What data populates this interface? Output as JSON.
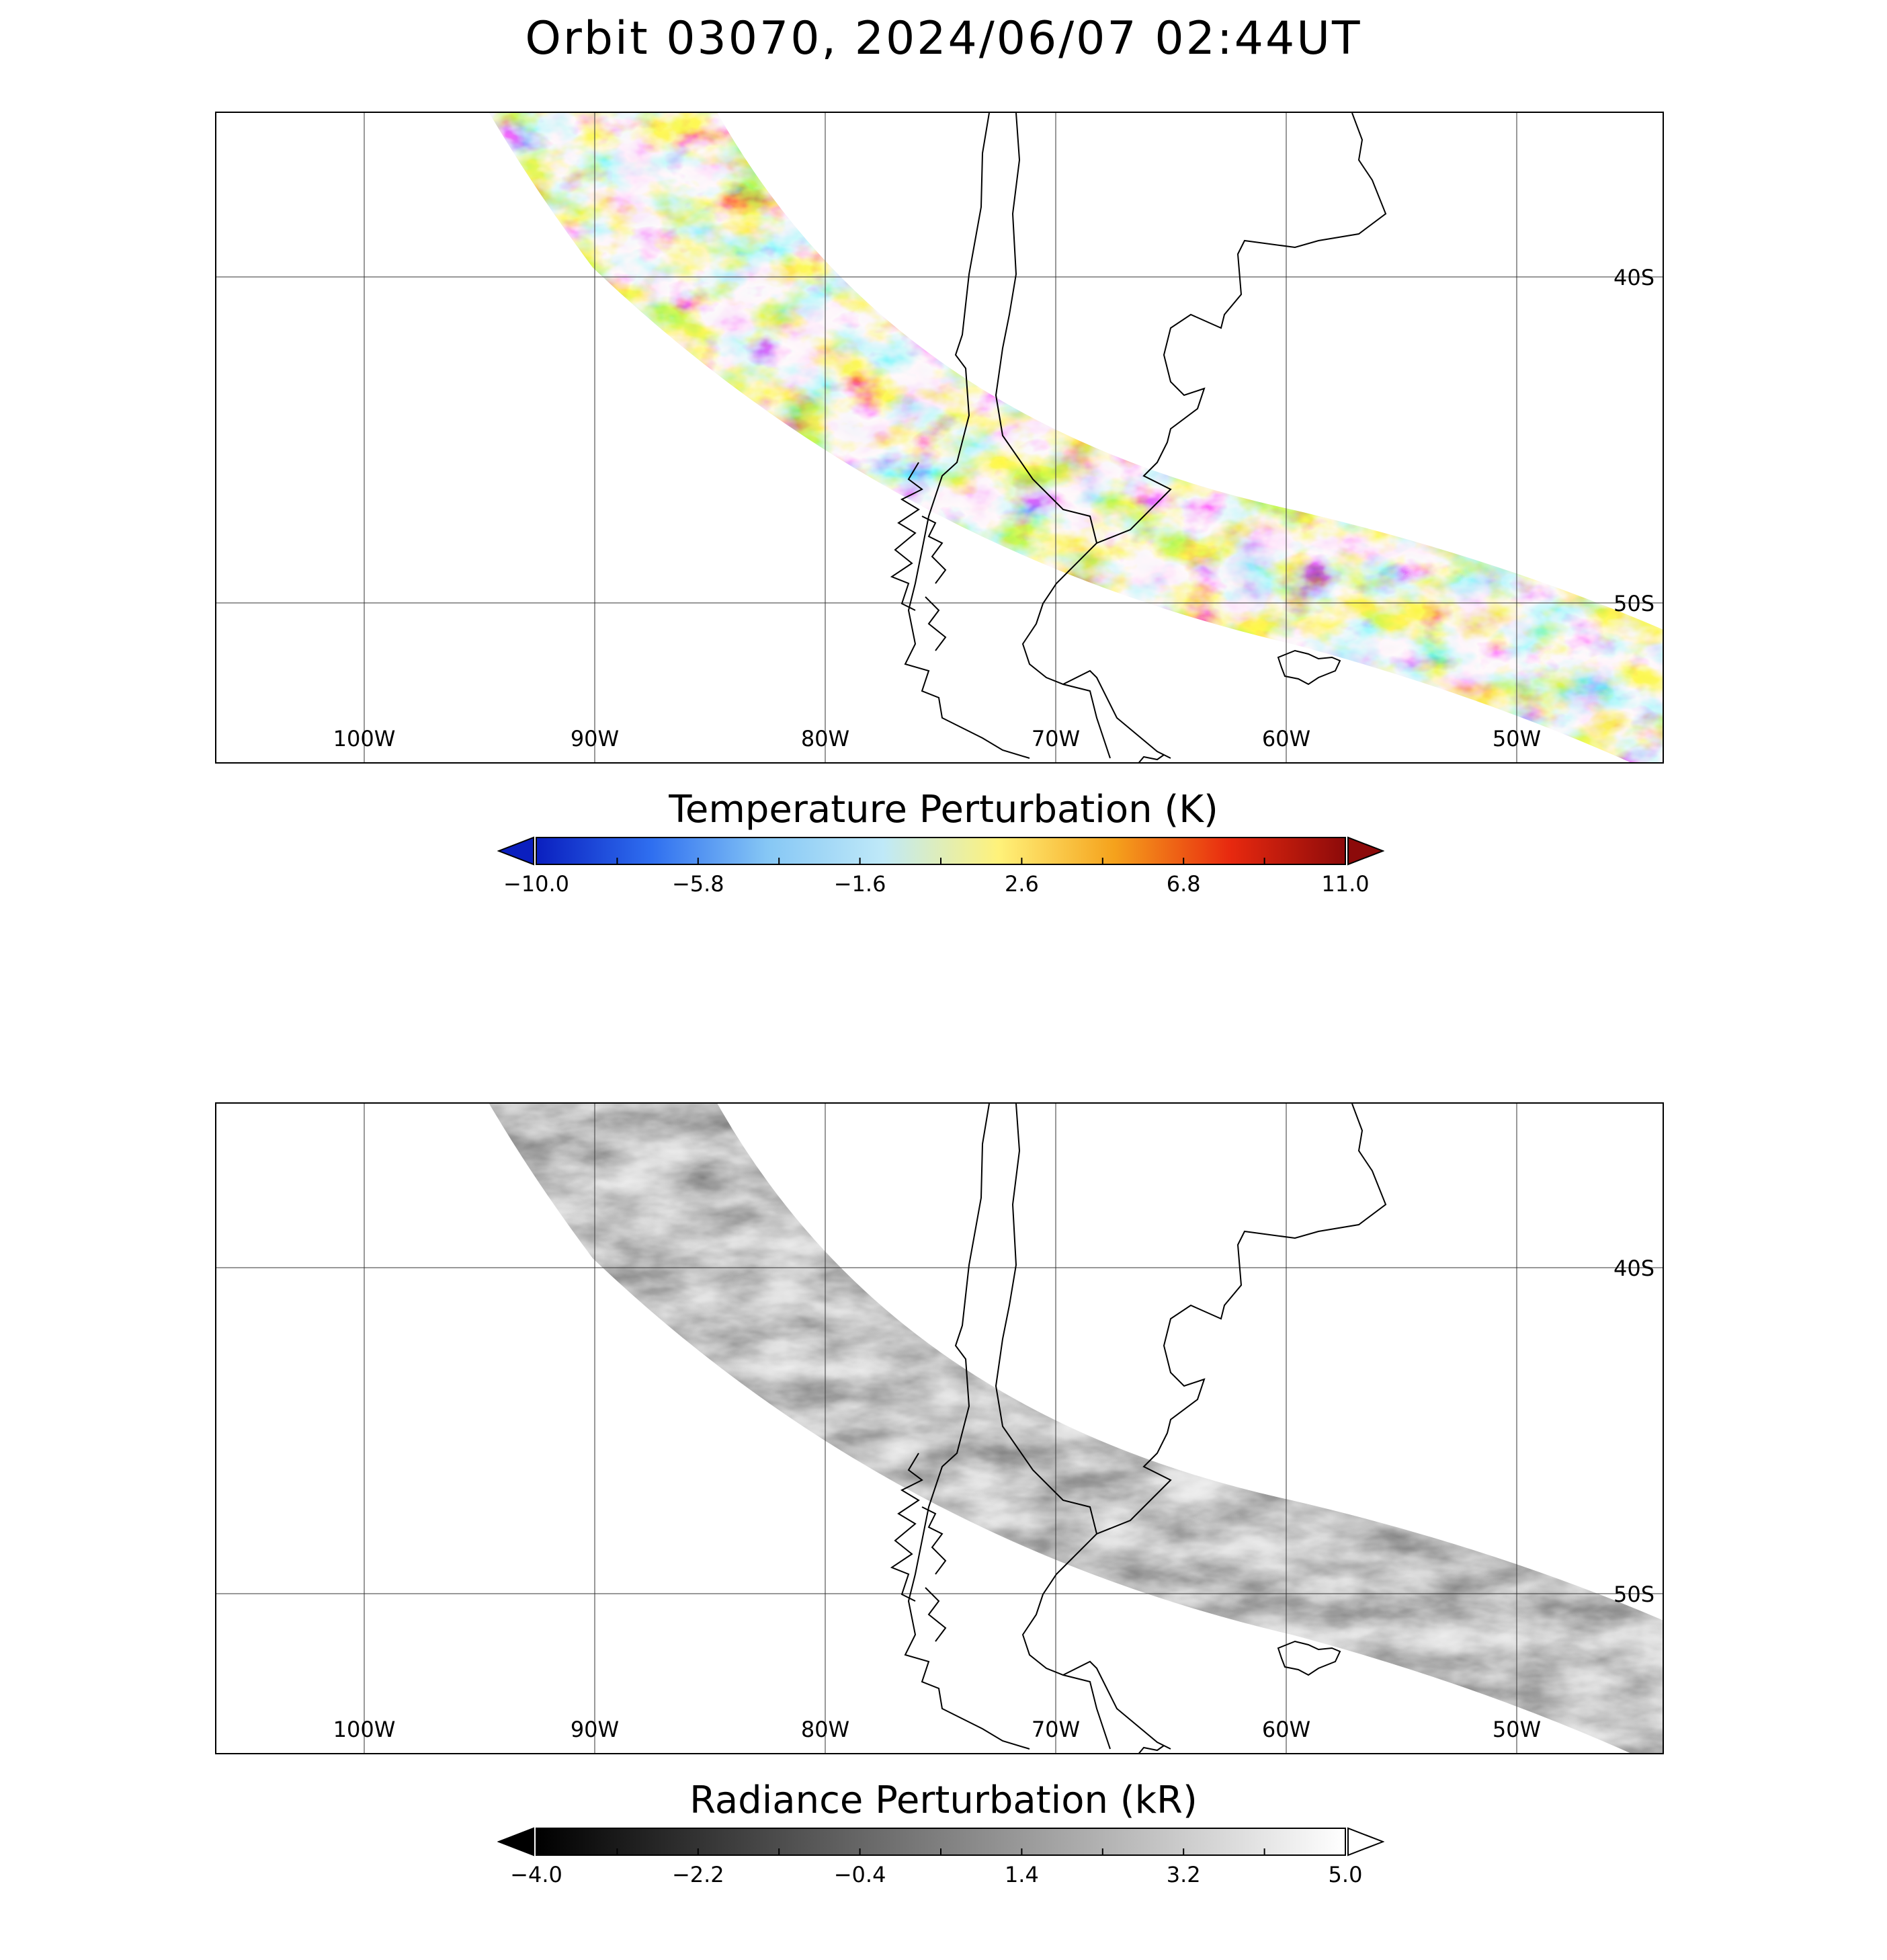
{
  "title": "Orbit 03070, 2024/06/07 02:44UT",
  "map": {
    "lon_labels": [
      "100W",
      "90W",
      "80W",
      "70W",
      "60W",
      "50W"
    ],
    "lat_labels": [
      "40S",
      "50S"
    ],
    "lon_values": [
      -100,
      -90,
      -80,
      -70,
      -60,
      -50
    ],
    "lat_values": [
      -40,
      -50
    ]
  },
  "panels": [
    {
      "id": "temperature",
      "colorbar_title": "Temperature Perturbation (K)",
      "colorbar_ticks": [
        "−10.0",
        "−5.8",
        "−1.6",
        "2.6",
        "6.8",
        "11.0"
      ],
      "colorbar_range": [
        -10.0,
        11.0
      ],
      "colors": [
        "#0a1fbf",
        "#2f6ff0",
        "#86c7f5",
        "#bfe9f8",
        "#fff27a",
        "#f5a21c",
        "#e8290f",
        "#8c0a0a"
      ],
      "extend_left_color": "#0a1fbf",
      "extend_right_color": "#8c0a0a"
    },
    {
      "id": "radiance",
      "colorbar_title": "Radiance Perturbation (kR)",
      "colorbar_ticks": [
        "−4.0",
        "−2.2",
        "−0.4",
        "1.4",
        "3.2",
        "5.0"
      ],
      "colorbar_range": [
        -4.0,
        5.0
      ],
      "colors": [
        "#000000",
        "#ffffff"
      ],
      "extend_left_color": "#000000",
      "extend_right_color": "#ffffff"
    }
  ]
}
